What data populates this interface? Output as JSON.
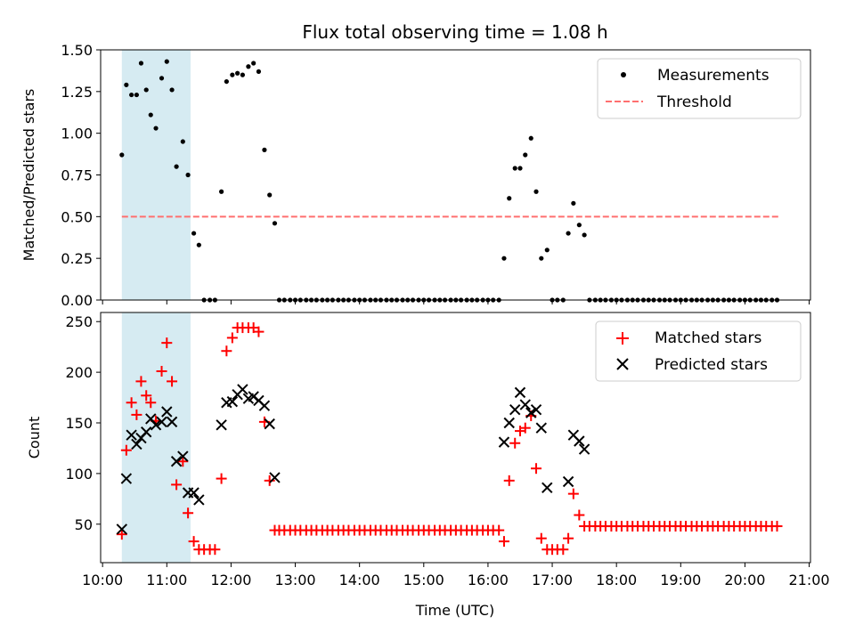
{
  "figure": {
    "title": "Flux total observing time = 1.08 h",
    "xlabel": "Time (UTC)",
    "colors": {
      "highlight": "#add8e6",
      "threshold": "#ff6f6f",
      "matched": "#ff0000",
      "predicted": "#000000",
      "measurement": "#000000"
    }
  },
  "chart_data": [
    {
      "type": "scatter",
      "name": "ratio-panel",
      "ylabel": "Matched/Predicted stars",
      "xlim_hours": [
        9.97,
        21.02
      ],
      "ylim": [
        0,
        1.5
      ],
      "yticks": [
        0.0,
        0.25,
        0.5,
        0.75,
        1.0,
        1.25,
        1.5
      ],
      "ytick_labels": [
        "0.00",
        "0.25",
        "0.50",
        "0.75",
        "1.00",
        "1.25",
        "1.50"
      ],
      "highlight_span_hours": [
        10.3,
        11.37
      ],
      "threshold": {
        "y": 0.5,
        "x_start_hours": 10.3,
        "x_end_hours": 20.55
      },
      "legend": {
        "position": "upper right",
        "entries": [
          "Measurements",
          "Threshold"
        ]
      },
      "series": [
        {
          "name": "Measurements",
          "x_hours": [
            10.3,
            10.37,
            10.45,
            10.53,
            10.6,
            10.68,
            10.75,
            10.83,
            10.92,
            11.0,
            11.08,
            11.15,
            11.25,
            11.33,
            11.42,
            11.5,
            11.58,
            11.67,
            11.75,
            11.85,
            11.93,
            12.02,
            12.1,
            12.18,
            12.27,
            12.35,
            12.43,
            12.52,
            12.6,
            12.68,
            12.75,
            12.83,
            12.92,
            13.0,
            13.08,
            13.17,
            13.25,
            13.33,
            13.42,
            13.5,
            13.58,
            13.67,
            13.75,
            13.83,
            13.92,
            14.0,
            14.08,
            14.17,
            14.25,
            14.33,
            14.42,
            14.5,
            14.58,
            14.67,
            14.75,
            14.83,
            14.92,
            15.0,
            15.08,
            15.17,
            15.25,
            15.33,
            15.42,
            15.5,
            15.58,
            15.67,
            15.75,
            15.83,
            15.92,
            16.0,
            16.08,
            16.17,
            16.25,
            16.33,
            16.42,
            16.5,
            16.58,
            16.67,
            16.75,
            16.83,
            16.92,
            17.0,
            17.08,
            17.17,
            17.25,
            17.33,
            17.42,
            17.5,
            17.58,
            17.67,
            17.75,
            17.83,
            17.92,
            18.0,
            18.08,
            18.17,
            18.25,
            18.33,
            18.42,
            18.5,
            18.58,
            18.67,
            18.75,
            18.83,
            18.92,
            19.0,
            19.08,
            19.17,
            19.25,
            19.33,
            19.42,
            19.5,
            19.58,
            19.67,
            19.75,
            19.83,
            19.92,
            20.0,
            20.08,
            20.17,
            20.25,
            20.33,
            20.42,
            20.5
          ],
          "y": [
            0.87,
            1.29,
            1.23,
            1.23,
            1.42,
            1.26,
            1.11,
            1.03,
            1.33,
            1.43,
            1.26,
            0.8,
            0.95,
            0.75,
            0.4,
            0.33,
            0.0,
            0.0,
            0.0,
            0.65,
            1.31,
            1.35,
            1.36,
            1.35,
            1.4,
            1.42,
            1.37,
            0.9,
            0.63,
            0.46,
            0.0,
            0.0,
            0.0,
            0.0,
            0.0,
            0.0,
            0.0,
            0.0,
            0.0,
            0.0,
            0.0,
            0.0,
            0.0,
            0.0,
            0.0,
            0.0,
            0.0,
            0.0,
            0.0,
            0.0,
            0.0,
            0.0,
            0.0,
            0.0,
            0.0,
            0.0,
            0.0,
            0.0,
            0.0,
            0.0,
            0.0,
            0.0,
            0.0,
            0.0,
            0.0,
            0.0,
            0.0,
            0.0,
            0.0,
            0.0,
            0.0,
            0.0,
            0.25,
            0.61,
            0.79,
            0.79,
            0.87,
            0.97,
            0.65,
            0.25,
            0.3,
            0.0,
            0.0,
            0.0,
            0.4,
            0.58,
            0.45,
            0.39,
            0.0,
            0.0,
            0.0,
            0.0,
            0.0,
            0.0,
            0.0,
            0.0,
            0.0,
            0.0,
            0.0,
            0.0,
            0.0,
            0.0,
            0.0,
            0.0,
            0.0,
            0.0,
            0.0,
            0.0,
            0.0,
            0.0,
            0.0,
            0.0,
            0.0,
            0.0,
            0.0,
            0.0,
            0.0,
            0.0,
            0.0,
            0.0,
            0.0,
            0.0,
            0.0,
            0.0
          ]
        }
      ]
    },
    {
      "type": "scatter",
      "name": "count-panel",
      "ylabel": "Count",
      "xlabel": "Time (UTC)",
      "xlim_hours": [
        9.97,
        21.02
      ],
      "ylim": [
        12,
        259
      ],
      "yticks": [
        50,
        100,
        150,
        200,
        250
      ],
      "ytick_labels": [
        "50",
        "100",
        "150",
        "200",
        "250"
      ],
      "xticks_hours": [
        10,
        11,
        12,
        13,
        14,
        15,
        16,
        17,
        18,
        19,
        20,
        21
      ],
      "xtick_labels": [
        "10:00",
        "11:00",
        "12:00",
        "13:00",
        "14:00",
        "15:00",
        "16:00",
        "17:00",
        "18:00",
        "19:00",
        "20:00",
        "21:00"
      ],
      "highlight_span_hours": [
        10.3,
        11.37
      ],
      "legend": {
        "position": "upper right",
        "entries": [
          "Matched stars",
          "Predicted stars"
        ]
      },
      "series": [
        {
          "name": "Matched stars",
          "marker": "+",
          "x_hours": [
            10.3,
            10.37,
            10.45,
            10.53,
            10.6,
            10.68,
            10.75,
            10.83,
            10.92,
            11.0,
            11.08,
            11.15,
            11.25,
            11.33,
            11.42,
            11.5,
            11.58,
            11.67,
            11.75,
            11.85,
            11.93,
            12.02,
            12.1,
            12.18,
            12.27,
            12.35,
            12.43,
            12.52,
            12.6,
            12.68,
            12.75,
            12.83,
            12.92,
            13.0,
            13.08,
            13.17,
            13.25,
            13.33,
            13.42,
            13.5,
            13.58,
            13.67,
            13.75,
            13.83,
            13.92,
            14.0,
            14.08,
            14.17,
            14.25,
            14.33,
            14.42,
            14.5,
            14.58,
            14.67,
            14.75,
            14.83,
            14.92,
            15.0,
            15.08,
            15.17,
            15.25,
            15.33,
            15.42,
            15.5,
            15.58,
            15.67,
            15.75,
            15.83,
            15.92,
            16.0,
            16.08,
            16.17,
            16.25,
            16.33,
            16.42,
            16.5,
            16.58,
            16.67,
            16.75,
            16.83,
            16.92,
            17.0,
            17.08,
            17.17,
            17.25,
            17.33,
            17.42,
            17.5,
            17.58,
            17.67,
            17.75,
            17.83,
            17.92,
            18.0,
            18.08,
            18.17,
            18.25,
            18.33,
            18.42,
            18.5,
            18.58,
            18.67,
            18.75,
            18.83,
            18.92,
            19.0,
            19.08,
            19.17,
            19.25,
            19.33,
            19.42,
            19.5,
            19.58,
            19.67,
            19.75,
            19.83,
            19.92,
            20.0,
            20.08,
            20.17,
            20.25,
            20.33,
            20.42,
            20.5
          ],
          "y": [
            40,
            123,
            170,
            158,
            191,
            177,
            170,
            152,
            201,
            229,
            191,
            89,
            112,
            61,
            33,
            25,
            25,
            25,
            25,
            95,
            221,
            234,
            244,
            244,
            244,
            244,
            240,
            151,
            93,
            44,
            44,
            44,
            44,
            44,
            44,
            44,
            44,
            44,
            44,
            44,
            44,
            44,
            44,
            44,
            44,
            44,
            44,
            44,
            44,
            44,
            44,
            44,
            44,
            44,
            44,
            44,
            44,
            44,
            44,
            44,
            44,
            44,
            44,
            44,
            44,
            44,
            44,
            44,
            44,
            44,
            44,
            44,
            33,
            93,
            130,
            142,
            145,
            157,
            105,
            36,
            25,
            25,
            25,
            25,
            36,
            80,
            59,
            48,
            48,
            48,
            48,
            48,
            48,
            48,
            48,
            48,
            48,
            48,
            48,
            48,
            48,
            48,
            48,
            48,
            48,
            48,
            48,
            48,
            48,
            48,
            48,
            48,
            48,
            48,
            48,
            48,
            48,
            48,
            48,
            48,
            48,
            48,
            48,
            48
          ]
        },
        {
          "name": "Predicted stars",
          "marker": "x",
          "x_hours": [
            10.3,
            10.37,
            10.45,
            10.53,
            10.6,
            10.68,
            10.75,
            10.83,
            10.92,
            11.0,
            11.08,
            11.15,
            11.25,
            11.33,
            11.42,
            11.5,
            11.85,
            11.93,
            12.02,
            12.1,
            12.18,
            12.27,
            12.35,
            12.43,
            12.52,
            12.6,
            12.68,
            16.25,
            16.33,
            16.42,
            16.5,
            16.58,
            16.67,
            16.75,
            16.83,
            16.92,
            17.25,
            17.33,
            17.42,
            17.5
          ],
          "y": [
            45,
            95,
            138,
            129,
            135,
            141,
            154,
            148,
            151,
            161,
            151,
            112,
            117,
            81,
            81,
            74,
            148,
            170,
            171,
            178,
            183,
            174,
            176,
            172,
            167,
            149,
            96,
            131,
            150,
            163,
            180,
            168,
            160,
            163,
            145,
            86,
            92,
            138,
            132,
            124
          ]
        }
      ]
    }
  ]
}
